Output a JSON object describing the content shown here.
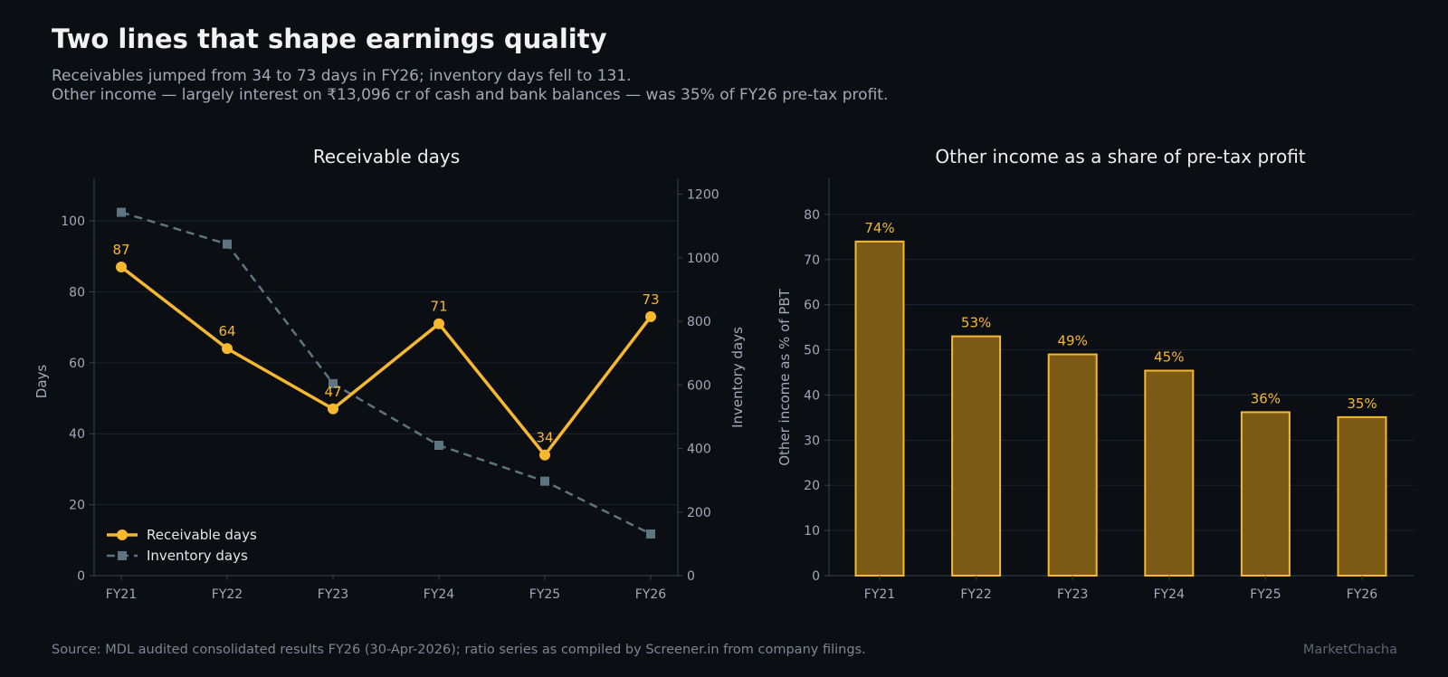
{
  "header": {
    "title": "Two lines that shape earnings quality",
    "subtitle_line1": "Receivables jumped from 34 to 73 days in FY26; inventory days fell to 131.",
    "subtitle_line2": "Other income — largely interest on ₹13,096 cr of cash and bank balances — was 35% of FY26 pre-tax profit."
  },
  "footer": {
    "source": "Source: MDL audited consolidated results FY26 (30-Apr-2026); ratio series as compiled by Screener.in from company filings.",
    "brand": "MarketChacha"
  },
  "colors": {
    "background": "#0b0e13",
    "receivable": "#f5b82e",
    "inventory": "#5d7580",
    "bar_fill": "#7a5a14",
    "bar_edge": "#f5b82e",
    "grid": "#1f252d",
    "axis_text": "#a2aab3"
  },
  "chart_data": [
    {
      "type": "line",
      "title": "Receivable days",
      "categories": [
        "FY21",
        "FY22",
        "FY23",
        "FY24",
        "FY25",
        "FY26"
      ],
      "xlabel": "",
      "ylabel": "Days",
      "ylabel_right": "Inventory days",
      "ylim": [
        0,
        112
      ],
      "ylim_right": [
        0,
        1250
      ],
      "yticks": [
        0,
        20,
        40,
        60,
        80,
        100
      ],
      "yticks_right": [
        0,
        200,
        400,
        600,
        800,
        1000,
        1200
      ],
      "grid": true,
      "legend_position": "lower-left",
      "series": [
        {
          "name": "Receivable days",
          "axis": "left",
          "values": [
            87,
            64,
            47,
            71,
            34,
            73
          ],
          "labels": [
            "87",
            "64",
            "47",
            "71",
            "34",
            "73"
          ],
          "marker": "circle",
          "style": "solid"
        },
        {
          "name": "Inventory days",
          "axis": "right",
          "values": [
            1143,
            1043,
            604,
            410,
            297,
            131
          ],
          "marker": "square",
          "style": "dashed"
        }
      ]
    },
    {
      "type": "bar",
      "title": "Other income as a share of pre-tax profit",
      "categories": [
        "FY21",
        "FY22",
        "FY23",
        "FY24",
        "FY25",
        "FY26"
      ],
      "values": [
        74,
        53,
        49,
        45.4,
        36.2,
        35.1
      ],
      "labels": [
        "74%",
        "53%",
        "49%",
        "45%",
        "36%",
        "35%"
      ],
      "xlabel": "",
      "ylabel": "Other income as % of PBT",
      "ylim": [
        0,
        88
      ],
      "yticks": [
        0,
        10,
        20,
        30,
        40,
        50,
        60,
        70,
        80
      ],
      "grid": true
    }
  ]
}
